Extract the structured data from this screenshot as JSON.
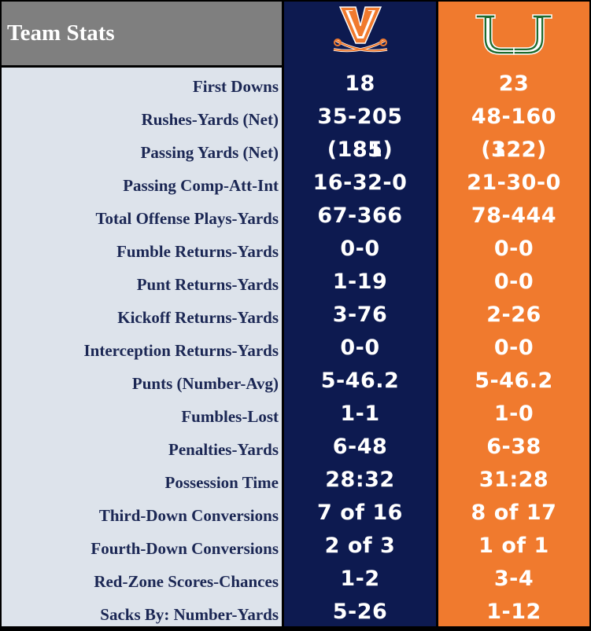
{
  "title": "Team Stats",
  "teams": {
    "home": {
      "logo": "virginia-v-sabres-icon",
      "color": "#0d1a50"
    },
    "away": {
      "logo": "miami-u-icon",
      "color": "#f07a2e"
    }
  },
  "rows": [
    {
      "label": "First Downs",
      "uva": "18",
      "mia": "23"
    },
    {
      "label": "Rushes-Yards (Net)",
      "uva": "35-205 (185)",
      "mia": "48-160 (122)"
    },
    {
      "label": "Passing Yards (Net)",
      "uva": "181",
      "mia": "322"
    },
    {
      "label": "Passing Comp-Att-Int",
      "uva": "16-32-0",
      "mia": "21-30-0"
    },
    {
      "label": "Total Offense Plays-Yards",
      "uva": "67-366",
      "mia": "78-444"
    },
    {
      "label": "Fumble Returns-Yards",
      "uva": "0-0",
      "mia": "0-0"
    },
    {
      "label": "Punt Returns-Yards",
      "uva": "1-19",
      "mia": "0-0"
    },
    {
      "label": "Kickoff Returns-Yards",
      "uva": "3-76",
      "mia": "2-26"
    },
    {
      "label": "Interception Returns-Yards",
      "uva": "0-0",
      "mia": "0-0"
    },
    {
      "label": "Punts (Number-Avg)",
      "uva": "5-46.2",
      "mia": "5-46.2"
    },
    {
      "label": "Fumbles-Lost",
      "uva": "1-1",
      "mia": "1-0"
    },
    {
      "label": "Penalties-Yards",
      "uva": "6-48",
      "mia": "6-38"
    },
    {
      "label": "Possession Time",
      "uva": "28:32",
      "mia": "31:28"
    },
    {
      "label": "Third-Down Conversions",
      "uva": "7 of 16",
      "mia": "8 of 17"
    },
    {
      "label": "Fourth-Down Conversions",
      "uva": "2 of 3",
      "mia": "1 of 1"
    },
    {
      "label": "Red-Zone Scores-Chances",
      "uva": "1-2",
      "mia": "3-4"
    },
    {
      "label": "Sacks By: Number-Yards",
      "uva": "5-26",
      "mia": "1-12"
    }
  ]
}
